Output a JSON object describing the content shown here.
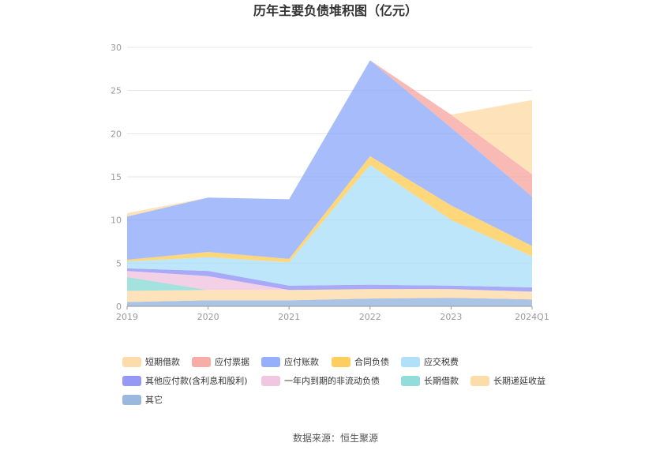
{
  "chart_data": {
    "type": "area",
    "stacked": true,
    "title": "历年主要负债堆积图（亿元）",
    "categories": [
      "2019",
      "2020",
      "2021",
      "2022",
      "2023",
      "2024Q1"
    ],
    "ylim": [
      0,
      30
    ],
    "yticks": [
      0,
      5,
      10,
      15,
      20,
      25,
      30
    ],
    "grid": true,
    "legend_position": "bottom",
    "series": [
      {
        "name": "其它",
        "color": "#8fb0dc",
        "values": [
          0.5,
          0.7,
          0.7,
          0.9,
          1.0,
          0.8
        ]
      },
      {
        "name": "长期递延收益",
        "color": "#fdd8a3",
        "values": [
          1.3,
          1.2,
          1.2,
          1.1,
          1.0,
          0.9
        ]
      },
      {
        "name": "长期借款",
        "color": "#86d8d6",
        "values": [
          1.6,
          0.0,
          0.0,
          0.0,
          0.0,
          0.0
        ]
      },
      {
        "name": "一年内到期的非流动负债",
        "color": "#f0c0dd",
        "values": [
          0.7,
          1.6,
          0.0,
          0.0,
          0.0,
          0.0
        ]
      },
      {
        "name": "其他应付款(含利息和股利)",
        "color": "#8b8df5",
        "values": [
          0.3,
          0.6,
          0.5,
          0.5,
          0.4,
          0.5
        ]
      },
      {
        "name": "应交税费",
        "color": "#a8def8",
        "values": [
          0.8,
          1.6,
          2.7,
          13.9,
          7.6,
          3.6
        ]
      },
      {
        "name": "合同负债",
        "color": "#fcc94e",
        "values": [
          0.2,
          0.6,
          0.4,
          1.0,
          1.7,
          1.2
        ]
      },
      {
        "name": "应付账款",
        "color": "#8aa6f9",
        "values": [
          5.0,
          6.3,
          6.9,
          11.1,
          9.0,
          5.7
        ]
      },
      {
        "name": "应付票据",
        "color": "#f7a39d",
        "values": [
          0.0,
          0.0,
          0.0,
          0.0,
          1.5,
          2.6
        ]
      },
      {
        "name": "短期借款",
        "color": "#fdd8a3",
        "values": [
          0.4,
          0.0,
          0.0,
          0.0,
          0.0,
          8.6
        ]
      }
    ],
    "legend_order": [
      "短期借款",
      "应付票据",
      "应付账款",
      "合同负债",
      "应交税费",
      "其他应付款(含利息和股利)",
      "一年内到期的非流动负债",
      "长期借款",
      "长期递延收益",
      "其它"
    ]
  },
  "source_text": "数据来源：恒生聚源"
}
